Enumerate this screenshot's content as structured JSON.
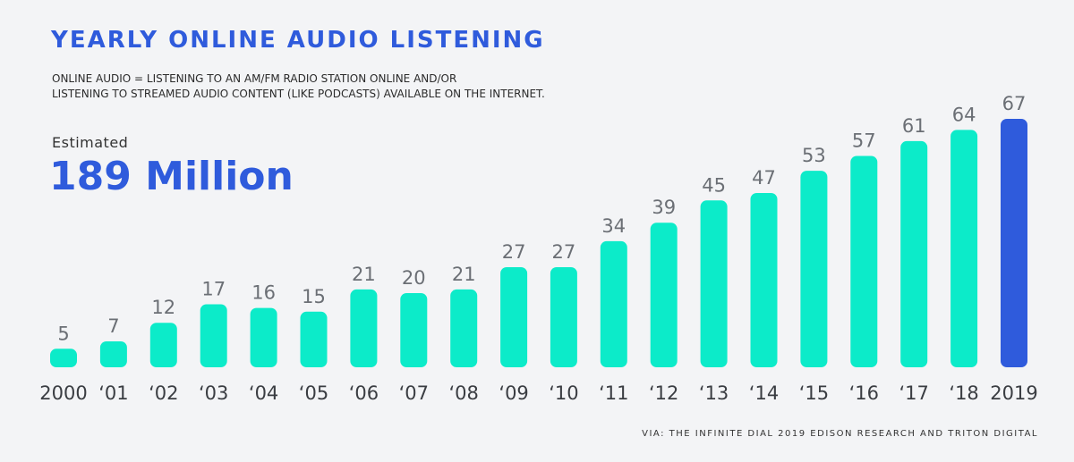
{
  "header": {
    "title": "YEARLY ONLINE AUDIO LISTENING",
    "subtitle_line1": "ONLINE AUDIO = LISTENING TO AN AM/FM RADIO STATION ONLINE AND/OR",
    "subtitle_line2": "LISTENING TO STREAMED AUDIO CONTENT (LIKE PODCASTS) AVAILABLE ON THE INTERNET."
  },
  "estimate": {
    "label": "Estimated",
    "value": "189 Million"
  },
  "footer": {
    "source": "VIA: THE INFINITE DIAL 2019 EDISON RESEARCH AND TRITON DIGITAL"
  },
  "colors": {
    "bar": "#0cebc9",
    "highlight_bar": "#2f5bdc",
    "title": "#2f5bdc"
  },
  "chart_data": {
    "type": "bar",
    "categories": [
      "2000",
      "‘01",
      "‘02",
      "‘03",
      "‘04",
      "‘05",
      "‘06",
      "‘07",
      "‘08",
      "‘09",
      "‘10",
      "‘11",
      "‘12",
      "‘13",
      "‘14",
      "‘15",
      "‘16",
      "‘17",
      "‘18",
      "2019"
    ],
    "values": [
      5,
      7,
      12,
      17,
      16,
      15,
      21,
      20,
      21,
      27,
      27,
      34,
      39,
      45,
      47,
      53,
      57,
      61,
      64,
      67
    ],
    "highlight_index": 19,
    "title": "",
    "xlabel": "",
    "ylabel": "",
    "ylim": [
      0,
      67
    ],
    "grid": false,
    "data_labels": true
  }
}
